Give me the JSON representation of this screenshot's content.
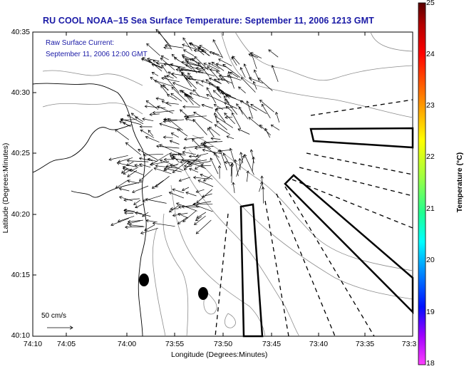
{
  "title": "RU COOL  NOAA–15  Sea Surface Temperature:  September 11, 2006 1213 GMT",
  "annotation": {
    "line1": "Raw Surface Current:",
    "line2": "September 11, 2006 12:00 GMT"
  },
  "axes": {
    "xlabel": "Longitude (Degrees:Minutes)",
    "ylabel": "Latitude (Degrees:Minutes)",
    "xticks": [
      "74:10",
      "74:05",
      "74:00",
      "73:55",
      "73:50",
      "73:45",
      "73:40",
      "73:35",
      "73:3"
    ],
    "yticks": [
      "40:35",
      "40:30",
      "40:25",
      "40:20",
      "40:15",
      "40:10"
    ]
  },
  "scale_label": "50 cm/s",
  "colorbar": {
    "label": "Temperature (°C)",
    "ticks": [
      "25",
      "24",
      "23",
      "22",
      "21",
      "20",
      "19",
      "18"
    ],
    "range": [
      18,
      25
    ]
  },
  "colors": {
    "title": "#1a1aa6",
    "axis": "#000000",
    "contour": "#8c8c8c",
    "coast": "#000000"
  }
}
